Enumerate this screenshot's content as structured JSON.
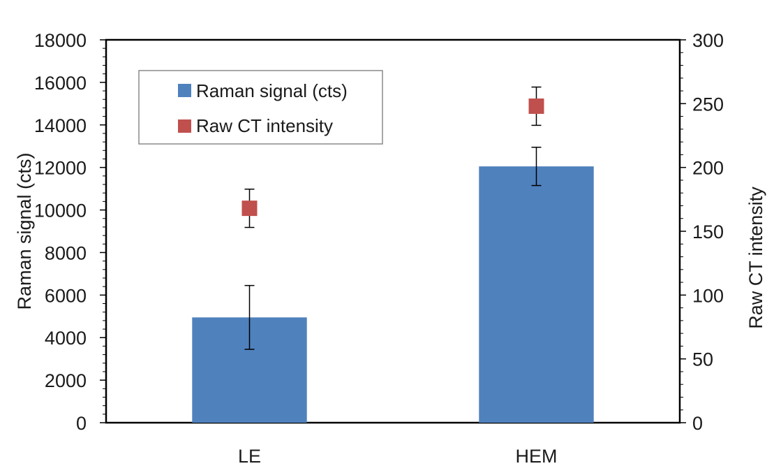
{
  "chart_data": {
    "type": "bar",
    "categories": [
      "LE",
      "HEM"
    ],
    "series": [
      {
        "name": "Raman signal (cts)",
        "kind": "bar",
        "axis": "left",
        "color": "#4f81bd",
        "values": [
          4950,
          12050
        ],
        "error": [
          1500,
          900
        ]
      },
      {
        "name": "Raw CT intensity",
        "kind": "marker",
        "axis": "right",
        "color": "#c0504d",
        "values": [
          168,
          248
        ],
        "error": [
          15,
          15
        ]
      }
    ],
    "ylabel": "Raman signal (cts)",
    "y2label": "Raw CT intensity",
    "ylim": [
      0,
      18000
    ],
    "y2lim": [
      0,
      300
    ],
    "yticks": [
      "0",
      "2000",
      "4000",
      "6000",
      "8000",
      "10000",
      "12000",
      "14000",
      "16000",
      "18000"
    ],
    "y2ticks": [
      "0",
      "50",
      "100",
      "150",
      "200",
      "250",
      "300"
    ],
    "legend_position": "top-left",
    "grid": false
  }
}
